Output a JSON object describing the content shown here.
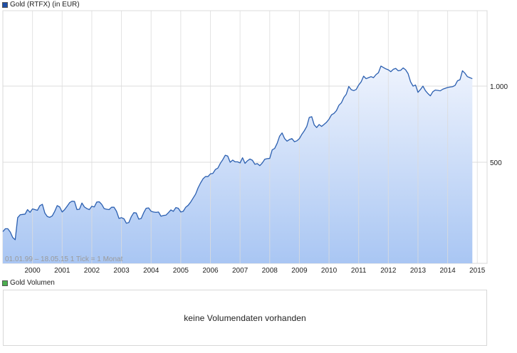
{
  "price_legend": {
    "label": "Gold (RTFX) (in EUR)",
    "color": "#1f4fa8"
  },
  "volume_legend": {
    "label": "Gold Volumen",
    "color": "#4caf50"
  },
  "range_text": "01.01.99 – 18.05.15   1 Tick = 1 Monat",
  "volume_panel": {
    "message": "keine Volumendaten vorhanden"
  },
  "chart_data": {
    "type": "area",
    "series": [
      {
        "values": [
          266,
          273,
          273,
          265,
          252,
          247,
          302,
          310,
          311,
          312,
          325,
          317,
          327,
          325,
          323,
          337,
          341,
          315,
          305,
          303,
          307,
          320,
          337,
          333,
          318,
          325,
          335,
          346,
          351,
          350,
          325,
          326,
          345,
          333,
          328,
          325,
          335,
          333,
          348,
          349,
          341,
          328,
          326,
          325,
          332,
          332,
          320,
          300,
          302,
          299,
          287,
          289,
          305,
          316,
          315,
          298,
          300,
          316,
          329,
          330,
          320,
          318,
          317,
          318,
          306,
          308,
          309,
          316,
          324,
          320,
          331,
          329,
          318,
          320,
          332,
          338,
          348,
          361,
          374,
          396,
          414,
          430,
          439,
          439,
          450,
          452,
          468,
          474,
          495,
          512,
          533,
          529,
          500,
          510,
          502,
          502,
          497,
          521,
          495,
          507,
          515,
          509,
          491,
          494,
          485,
          497,
          514,
          517,
          518,
          560,
          567,
          594,
          634,
          653,
          621,
          606,
          615,
          620,
          603,
          608,
          620,
          645,
          666,
          693,
          752,
          757,
          703,
          686,
          705,
          693,
          706,
          720,
          740,
          770,
          780,
          800,
          840,
          859,
          902,
          930,
          997,
          968,
          960,
          970,
          1010,
          1040,
          1095,
          1070,
          1080,
          1090,
          1080,
          1110,
          1130,
          1200,
          1185,
          1170,
          1160,
          1140,
          1165,
          1175,
          1150,
          1155,
          1180,
          1160,
          1120,
          1040,
          1000,
          1010,
          945,
          970,
          1000,
          960,
          935,
          915,
          950,
          965,
          962,
          958,
          972,
          980,
          988,
          992,
          995,
          1006,
          1050,
          1060,
          1150,
          1125,
          1090,
          1080,
          1070
        ]
      }
    ],
    "x_ticks": [
      "2000",
      "2001",
      "2002",
      "2003",
      "2004",
      "2005",
      "2006",
      "2007",
      "2008",
      "2009",
      "2010",
      "2011",
      "2012",
      "2013",
      "2014",
      "2015"
    ],
    "y_ticks": [
      {
        "value": 500,
        "label": "500"
      },
      {
        "value": 1000,
        "label": "1.000"
      }
    ],
    "y_scale": "log",
    "grid": true,
    "line_color": "#2b5fb0",
    "fill_top_color": "#eef3fd",
    "fill_bottom_color": "#a9c6f3",
    "grid_color": "#dcdcdc",
    "axis_color": "#bdbdbd"
  }
}
